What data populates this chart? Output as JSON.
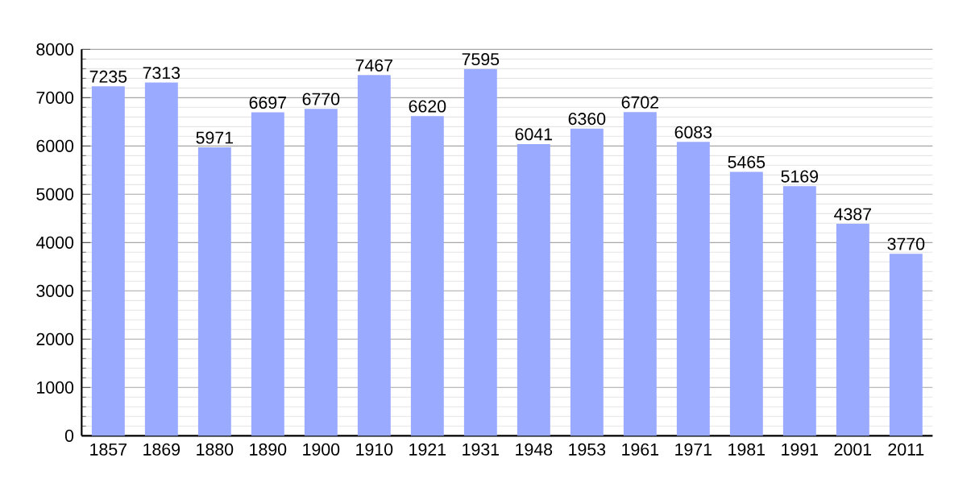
{
  "chart_data": {
    "type": "bar",
    "categories": [
      "1857",
      "1869",
      "1880",
      "1890",
      "1900",
      "1910",
      "1921",
      "1931",
      "1948",
      "1953",
      "1961",
      "1971",
      "1981",
      "1991",
      "2001",
      "2011"
    ],
    "values": [
      7235,
      7313,
      5971,
      6697,
      6770,
      7467,
      6620,
      7595,
      6041,
      6360,
      6702,
      6083,
      5465,
      5169,
      4387,
      3770
    ],
    "color": "#99aaff",
    "ylim": [
      0,
      8000
    ],
    "yticks": [
      0,
      1000,
      2000,
      3000,
      4000,
      5000,
      6000,
      7000,
      8000
    ],
    "grid": "y",
    "data_labels": true
  }
}
